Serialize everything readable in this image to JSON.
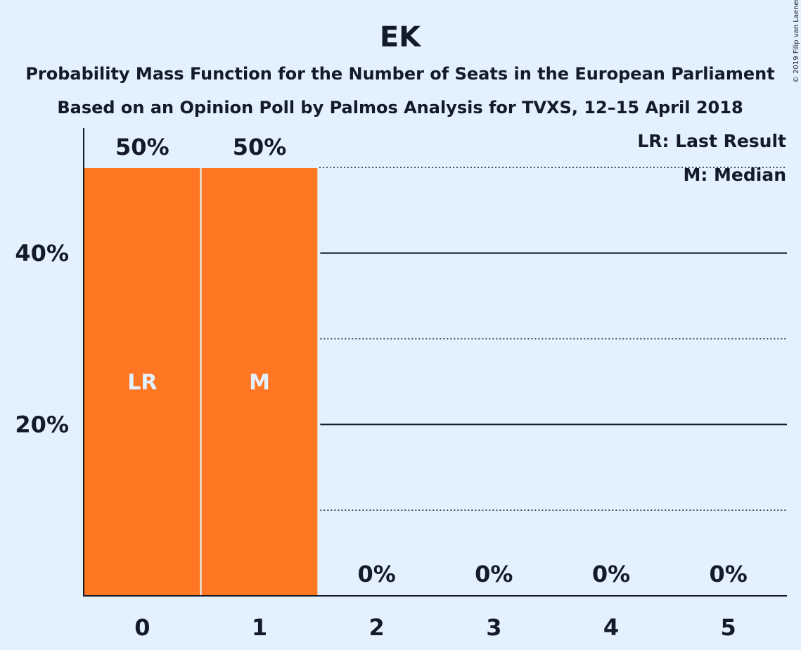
{
  "chart_data": {
    "type": "bar",
    "title": "EK",
    "subtitle_lines": [
      "Probability Mass Function for the Number of Seats in the European Parliament",
      "Based on an Opinion Poll by Palmos Analysis for TVXS, 12–15 April 2018"
    ],
    "categories": [
      "0",
      "1",
      "2",
      "3",
      "4",
      "5"
    ],
    "values": [
      50,
      50,
      0,
      0,
      0,
      0
    ],
    "value_labels": [
      "50%",
      "50%",
      "0%",
      "0%",
      "0%",
      "0%"
    ],
    "bar_annotations": [
      "LR",
      "M",
      "",
      "",
      "",
      ""
    ],
    "ylim": [
      0,
      50
    ],
    "yticks": [
      {
        "value": 10,
        "label": "",
        "style": "dotted"
      },
      {
        "value": 20,
        "label": "20%",
        "style": "solid"
      },
      {
        "value": 30,
        "label": "",
        "style": "dotted"
      },
      {
        "value": 40,
        "label": "40%",
        "style": "solid"
      },
      {
        "value": 50,
        "label": "",
        "style": "dotted"
      }
    ],
    "legend": [
      "LR: Last Result",
      "M: Median"
    ],
    "legend_position": "top-right",
    "copyright": "© 2019 Filip van Laenen",
    "colors": {
      "background": "#e3f0fd",
      "bar": "#ff7722",
      "text": "#131a2a",
      "bar_text": "#e3f0fd"
    }
  }
}
